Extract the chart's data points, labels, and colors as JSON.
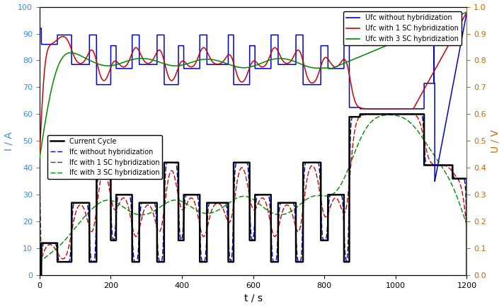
{
  "xlabel": "t / s",
  "ylabel_left": "I / A",
  "ylabel_right": "U / V",
  "xlim": [
    0,
    1200
  ],
  "ylim_left": [
    0,
    100
  ],
  "ylim_right": [
    0,
    1
  ],
  "yticks_left": [
    0,
    10,
    20,
    30,
    40,
    50,
    60,
    70,
    80,
    90,
    100
  ],
  "yticks_right": [
    0,
    0.1,
    0.2,
    0.3,
    0.4,
    0.5,
    0.6,
    0.7,
    0.8,
    0.9,
    1.0
  ],
  "xticks": [
    0,
    200,
    400,
    600,
    800,
    1000,
    1200
  ],
  "color_blue": "#0000cc",
  "color_red": "#cc0000",
  "color_green": "#008800",
  "color_black": "#000000",
  "bg_color": "#ffffff",
  "left_axis_color": "#4488cc",
  "right_axis_color": "#cc6600"
}
